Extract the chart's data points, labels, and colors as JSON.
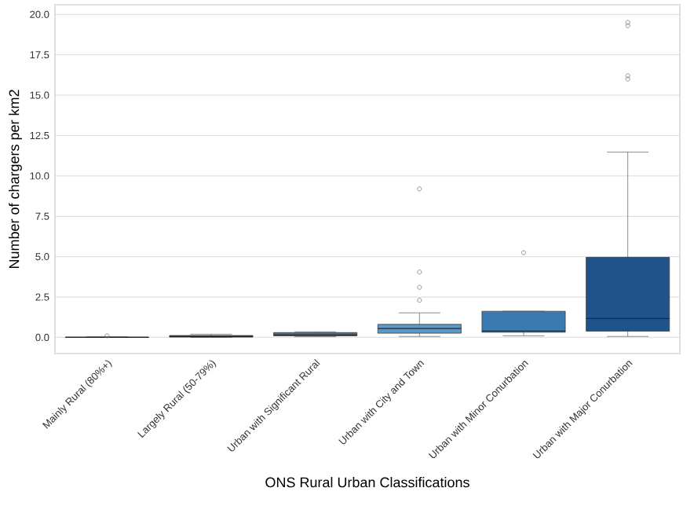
{
  "chart_data": {
    "type": "box",
    "xlabel": "ONS Rural Urban Classifications",
    "ylabel": "Number of chargers per km2",
    "categories": [
      "Mainly Rural (80%+)",
      "Largely Rural (50-79%)",
      "Urban with Significant Rural",
      "Urban with City and Town",
      "Urban with Minor Conurbation",
      "Urban with Major Conurbation"
    ],
    "boxes": [
      {
        "low": 0.0,
        "q1": 0.0,
        "median": 0.0,
        "q3": 0.02,
        "high": 0.05,
        "outliers": [
          0.1
        ]
      },
      {
        "low": 0.0,
        "q1": 0.02,
        "median": 0.05,
        "q3": 0.12,
        "high": 0.2
      },
      {
        "low": 0.05,
        "q1": 0.1,
        "median": 0.15,
        "q3": 0.3,
        "high": 0.35
      },
      {
        "low": 0.06,
        "q1": 0.26,
        "median": 0.55,
        "q3": 0.81,
        "high": 1.52,
        "outliers": [
          2.3,
          3.1,
          4.05,
          9.2
        ]
      },
      {
        "low": 0.1,
        "q1": 0.32,
        "median": 0.39,
        "q3": 1.62,
        "high": 1.62,
        "outliers": [
          5.25
        ]
      },
      {
        "low": 0.06,
        "q1": 0.39,
        "median": 1.17,
        "q3": 4.96,
        "high": 11.47,
        "outliers": [
          16.0,
          16.2,
          19.3,
          19.5
        ]
      }
    ],
    "colors": [
      "#808080",
      "#3a3a3a",
      "#5a6878",
      "#5a9ac8",
      "#3b7ab0",
      "#1f538a"
    ],
    "ylim": [
      -1.0,
      20.6
    ],
    "yticks": [
      {
        "value": 0,
        "label": "0.0"
      },
      {
        "value": 2.5,
        "label": "2.5"
      },
      {
        "value": 5,
        "label": "5.0"
      },
      {
        "value": 7.5,
        "label": "7.5"
      },
      {
        "value": 10,
        "label": "10.0"
      },
      {
        "value": 12.5,
        "label": "12.5"
      },
      {
        "value": 15,
        "label": "15.0"
      },
      {
        "value": 17.5,
        "label": "17.5"
      },
      {
        "value": 20,
        "label": "20.0"
      }
    ],
    "grid": "y"
  }
}
